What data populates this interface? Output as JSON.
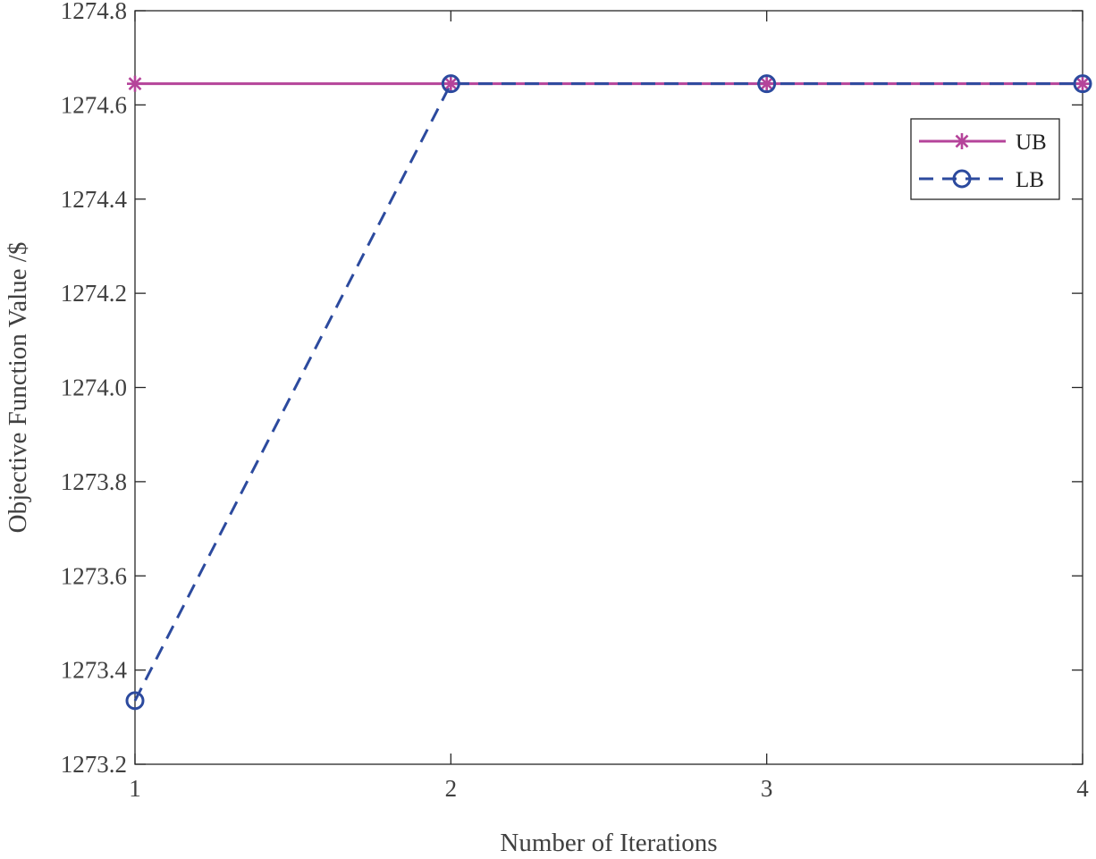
{
  "chart_data": {
    "type": "line",
    "title": "",
    "xlabel": "Number of Iterations",
    "ylabel": "Objective  Function Value /$",
    "xlim": [
      1,
      4
    ],
    "ylim": [
      1273.2,
      1274.8
    ],
    "x": [
      1,
      2,
      3,
      4
    ],
    "xticks": [
      1,
      2,
      3,
      4
    ],
    "xtick_labels": [
      "1",
      "2",
      "3",
      "4"
    ],
    "yticks": [
      1273.2,
      1273.4,
      1273.6,
      1273.8,
      1274.0,
      1274.2,
      1274.4,
      1274.6,
      1274.8
    ],
    "ytick_labels": [
      "1273.2",
      "1273.4",
      "1273.6",
      "1273.8",
      "1274.0",
      "1274.2",
      "1274.4",
      "1274.6",
      "1274.8"
    ],
    "grid": false,
    "legend_position": "top-right",
    "series": [
      {
        "name": "UB",
        "values": [
          1274.645,
          1274.645,
          1274.645,
          1274.645
        ],
        "color": "#b5449a",
        "line_style": "solid",
        "marker": "asterisk"
      },
      {
        "name": "LB",
        "values": [
          1273.335,
          1274.645,
          1274.645,
          1274.645
        ],
        "color": "#2c4a9e",
        "line_style": "dashed",
        "marker": "circle"
      }
    ]
  }
}
